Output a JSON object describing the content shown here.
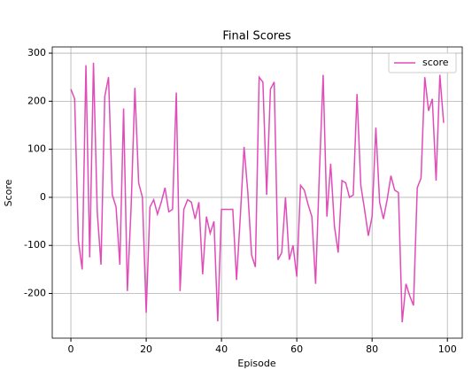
{
  "chart_data": {
    "type": "line",
    "title": "Final Scores",
    "xlabel": "Episode",
    "ylabel": "Score",
    "x": [
      0,
      1,
      2,
      3,
      4,
      5,
      6,
      7,
      8,
      9,
      10,
      11,
      12,
      13,
      14,
      15,
      16,
      17,
      18,
      19,
      20,
      21,
      22,
      23,
      24,
      25,
      26,
      27,
      28,
      29,
      30,
      31,
      32,
      33,
      34,
      35,
      36,
      37,
      38,
      39,
      40,
      41,
      42,
      43,
      44,
      45,
      46,
      47,
      48,
      49,
      50,
      51,
      52,
      53,
      54,
      55,
      56,
      57,
      58,
      59,
      60,
      61,
      62,
      63,
      64,
      65,
      66,
      67,
      68,
      69,
      70,
      71,
      72,
      73,
      74,
      75,
      76,
      77,
      78,
      79,
      80,
      81,
      82,
      83,
      84,
      85,
      86,
      87,
      88,
      89,
      90,
      91,
      92,
      93,
      94,
      95,
      96,
      97,
      98,
      99
    ],
    "series": [
      {
        "name": "score",
        "color": "#e04cb8",
        "values": [
          225,
          205,
          -90,
          -150,
          275,
          -125,
          280,
          -30,
          -140,
          210,
          250,
          5,
          -20,
          -140,
          185,
          -195,
          -20,
          228,
          30,
          0,
          -240,
          -20,
          -5,
          -35,
          -10,
          20,
          -30,
          -25,
          218,
          -195,
          -25,
          -5,
          -10,
          -45,
          -10,
          -160,
          -40,
          -75,
          -50,
          -258,
          -25,
          -25,
          -25,
          -25,
          -172,
          -40,
          105,
          10,
          -120,
          -145,
          250,
          240,
          5,
          225,
          240,
          -130,
          -115,
          0,
          -130,
          -100,
          -165,
          25,
          15,
          -15,
          -40,
          -180,
          50,
          255,
          -40,
          70,
          -60,
          -115,
          35,
          30,
          0,
          5,
          215,
          25,
          -25,
          -80,
          -40,
          145,
          -10,
          -45,
          -5,
          45,
          15,
          10,
          -260,
          -180,
          -205,
          -225,
          20,
          40,
          250,
          180,
          205,
          35,
          255,
          155
        ]
      }
    ],
    "xlim": [
      -4.95,
      103.95
    ],
    "ylim": [
      -293,
      313
    ],
    "xticks": [
      0,
      20,
      40,
      60,
      80,
      100
    ],
    "yticks": [
      -200,
      -100,
      0,
      100,
      200,
      300
    ],
    "grid": true,
    "legend": "upper right"
  }
}
